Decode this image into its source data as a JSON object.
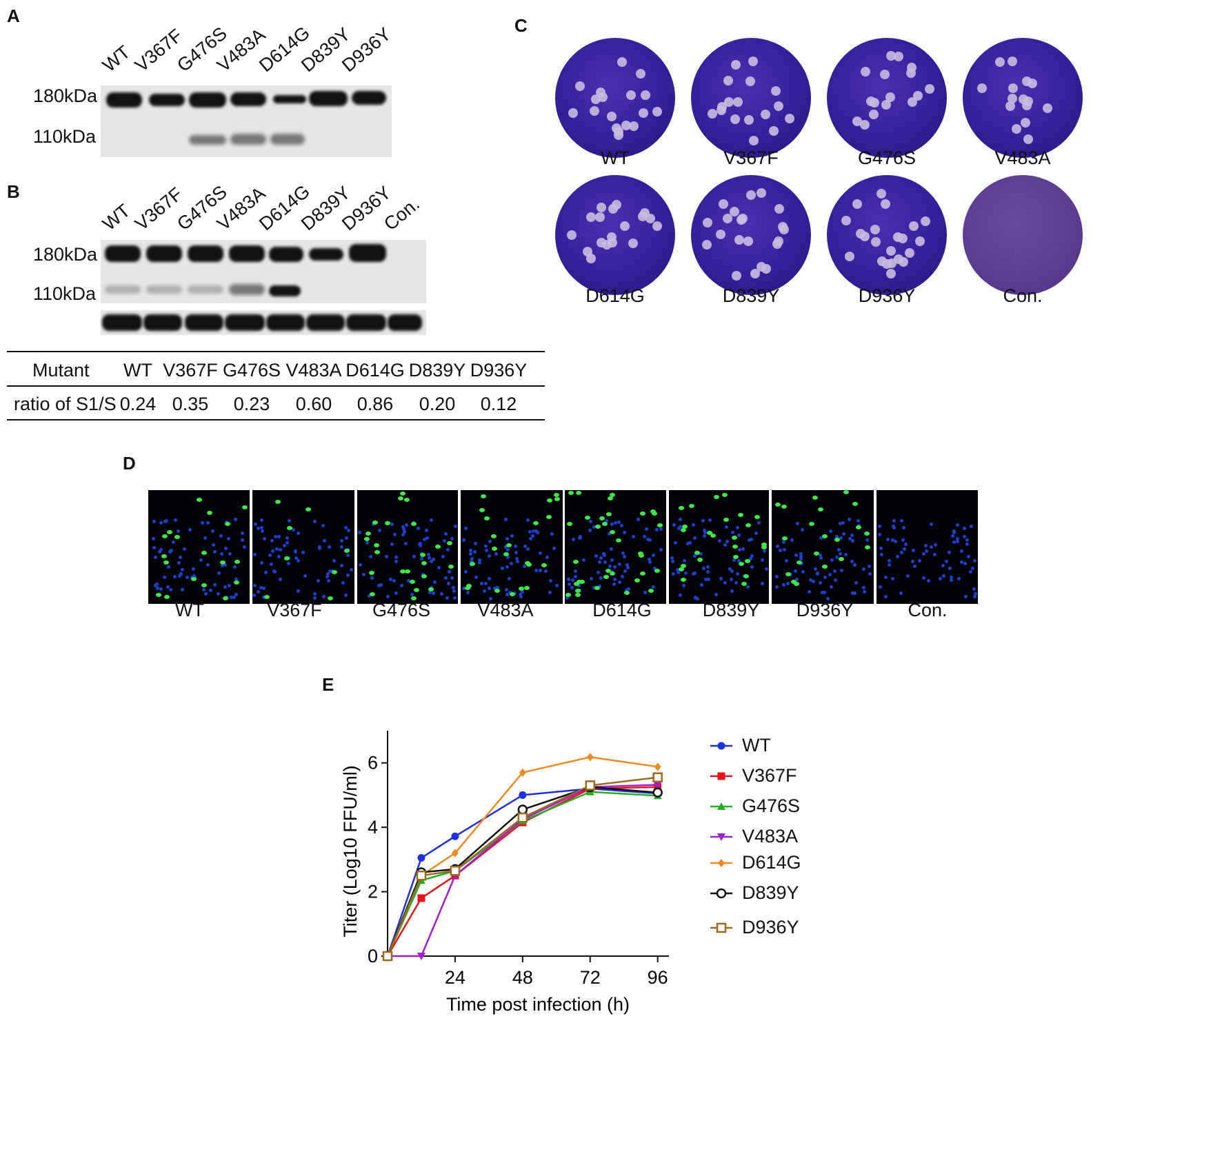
{
  "panels": {
    "A": "A",
    "B": "B",
    "C": "C",
    "D": "D",
    "E": "E"
  },
  "mutants": [
    "WT",
    "V367F",
    "G476S",
    "V483A",
    "D614G",
    "D839Y",
    "D936Y"
  ],
  "lanes_b": [
    "WT",
    "V367F",
    "G476S",
    "V483A",
    "D614G",
    "D839Y",
    "D936Y",
    "Con."
  ],
  "kda": {
    "upper": "180kDa",
    "lower": "110kDa"
  },
  "table": {
    "header_label": "Mutant",
    "row_label": "ratio of S1/S",
    "columns": [
      "WT",
      "V367F",
      "G476S",
      "V483A",
      "D614G",
      "D839Y",
      "D936Y"
    ],
    "ratios": [
      "0.24",
      "0.35",
      "0.23",
      "0.60",
      "0.86",
      "0.20",
      "0.12"
    ]
  },
  "plaque_labels": [
    "WT",
    "V367F",
    "G476S",
    "V483A",
    "D614G",
    "D839Y",
    "D936Y",
    "Con."
  ],
  "fluor_labels": [
    "WT",
    "V367F",
    "G476S",
    "V483A",
    "D614G",
    "D839Y",
    "D936Y",
    "Con."
  ],
  "chart_data": {
    "type": "line",
    "xlabel": "Time post infection (h)",
    "ylabel": "Titer (Log10 FFU/ml)",
    "xticks": [
      24,
      48,
      72,
      96
    ],
    "yticks": [
      0,
      2,
      4,
      6
    ],
    "xlim": [
      0,
      100
    ],
    "ylim": [
      0,
      7
    ],
    "legend_position": "right",
    "x": [
      0,
      12,
      24,
      48,
      72,
      96
    ],
    "series": [
      {
        "name": "WT",
        "color": "#1f2fe0",
        "marker": "circle",
        "values": [
          0,
          3.05,
          3.72,
          5.0,
          5.2,
          5.05
        ]
      },
      {
        "name": "V367F",
        "color": "#e8141c",
        "marker": "square",
        "values": [
          0,
          1.8,
          2.5,
          4.15,
          5.2,
          5.25
        ]
      },
      {
        "name": "G476S",
        "color": "#22b022",
        "marker": "triangle-up",
        "values": [
          0,
          2.35,
          2.65,
          4.2,
          5.1,
          4.98
        ]
      },
      {
        "name": "V483A",
        "color": "#a020d0",
        "marker": "triangle-down",
        "values": [
          0,
          0,
          2.5,
          4.25,
          5.25,
          5.32
        ]
      },
      {
        "name": "D614G",
        "color": "#f08a1e",
        "marker": "diamond",
        "values": [
          0,
          2.5,
          3.2,
          5.7,
          6.18,
          5.88
        ]
      },
      {
        "name": "D839Y",
        "color": "#111111",
        "marker": "circle-open",
        "values": [
          0,
          2.6,
          2.7,
          4.55,
          5.25,
          5.08
        ]
      },
      {
        "name": "D936Y",
        "color": "#9a6a1e",
        "marker": "square-open",
        "values": [
          0,
          2.5,
          2.65,
          4.3,
          5.3,
          5.55
        ]
      }
    ]
  }
}
